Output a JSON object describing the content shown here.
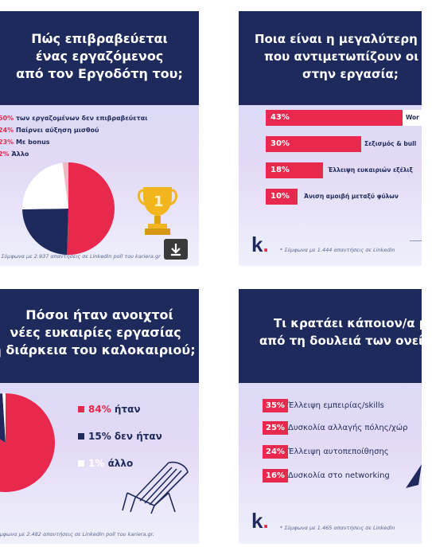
{
  "card1": {
    "title_lines": [
      "Πώς επιβραβεύεται",
      "ένας εργαζόμενος",
      "από τον Εργοδότη του;"
    ],
    "legend": [
      {
        "pct": "50%",
        "text": "των εργαζομένων δεν επιβραβεύεται"
      },
      {
        "pct": "24%",
        "text": "Παίρνει αύξηση μισθού"
      },
      {
        "pct": "23%",
        "text": "Με bonus"
      },
      {
        "pct": "2%",
        "text": "Άλλο"
      }
    ],
    "pie": [
      50,
      24,
      23,
      2
    ],
    "colors": [
      "#e8284d",
      "#1f2a5c",
      "#ffffff",
      "#f3b7c4"
    ],
    "footnote": "* Σύμφωνα με 2.937 απαντήσεις σε LinkedIn poll του kariera.gr",
    "download_icon": "download-icon",
    "trophy_icon": "trophy-icon"
  },
  "card2": {
    "title_lines": [
      "Ποια είναι η μεγαλύτερη π",
      "που αντιμετωπίζουν οι γ",
      "στην εργασία;"
    ],
    "bars": [
      {
        "pct": "43%",
        "value": 43,
        "label": "Wor"
      },
      {
        "pct": "30%",
        "value": 30,
        "label": "Σεξισμός & bull"
      },
      {
        "pct": "18%",
        "value": 18,
        "label": "Έλλειψη ευκαιριών εξέλιξ"
      },
      {
        "pct": "10%",
        "value": 10,
        "label": "Άνιση αμοιβή μεταξύ φύλων"
      }
    ],
    "logo": "k",
    "footnote": "* Σύμφωνα με 1.444 απαντήσεις σε LinkedIn"
  },
  "card3": {
    "title_lines": [
      "Πόσοι ήταν ανοιχτοί",
      "νέες ευκαιρίες εργασίας",
      "η διάρκεια του καλοκαιριού;"
    ],
    "legend": [
      {
        "pct": "84%",
        "text": "ήταν"
      },
      {
        "pct": "15%",
        "text": "δεν ήταν"
      },
      {
        "pct": "1%",
        "text": "άλλο"
      }
    ],
    "pie": [
      84,
      15,
      1
    ],
    "colors": [
      "#e8284d",
      "#1f2a5c",
      "#ffffff"
    ],
    "footnote": "ύμφωνα με 2.482 απαντήσεις σε LinkedIn poll του kariera.gr.",
    "chair_icon": "beach-chair-icon"
  },
  "card4": {
    "title_lines": [
      "Τι κρατάει κάποιον/α μ",
      "από τη δουλειά των ονείρ"
    ],
    "items": [
      {
        "pct": "35%",
        "text": "Έλλειψη εμπειρίας/skills"
      },
      {
        "pct": "25%",
        "text": "Δυσκολία αλλαγής πόλης/χώρ"
      },
      {
        "pct": "24%",
        "text": "Έλλειψη αυτοπεποίθησης"
      },
      {
        "pct": "16%",
        "text": "Δυσκολία στο networking"
      }
    ],
    "logo": "k",
    "footnote": "* Σύμφωνα με 1.465 απαντήσεις σε LinkedIn"
  }
}
